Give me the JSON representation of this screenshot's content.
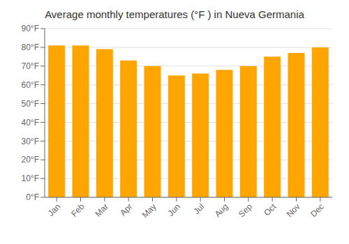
{
  "chart_data": {
    "type": "bar",
    "title": "Average monthly temperatures (°F ) in Nueva Germania",
    "categories": [
      "Jan",
      "Feb",
      "Mar",
      "Apr",
      "May",
      "Jun",
      "Jul",
      "Aug",
      "Sep",
      "Oct",
      "Nov",
      "Dec"
    ],
    "values": [
      81,
      81,
      79,
      73,
      70,
      65,
      66,
      68,
      70,
      75,
      77,
      80
    ],
    "color": "#FFA500",
    "ylim": [
      0,
      90
    ],
    "yticks": [
      {
        "value": 0,
        "label": "0°F"
      },
      {
        "value": 10,
        "label": "10°F"
      },
      {
        "value": 20,
        "label": "20°F"
      },
      {
        "value": 30,
        "label": "30°F"
      },
      {
        "value": 40,
        "label": "40°F"
      },
      {
        "value": 50,
        "label": "50°F"
      },
      {
        "value": 60,
        "label": "60°F"
      },
      {
        "value": 70,
        "label": "70°F"
      },
      {
        "value": 80,
        "label": "80°F"
      },
      {
        "value": 90,
        "label": "90°F"
      }
    ],
    "grid": true
  }
}
